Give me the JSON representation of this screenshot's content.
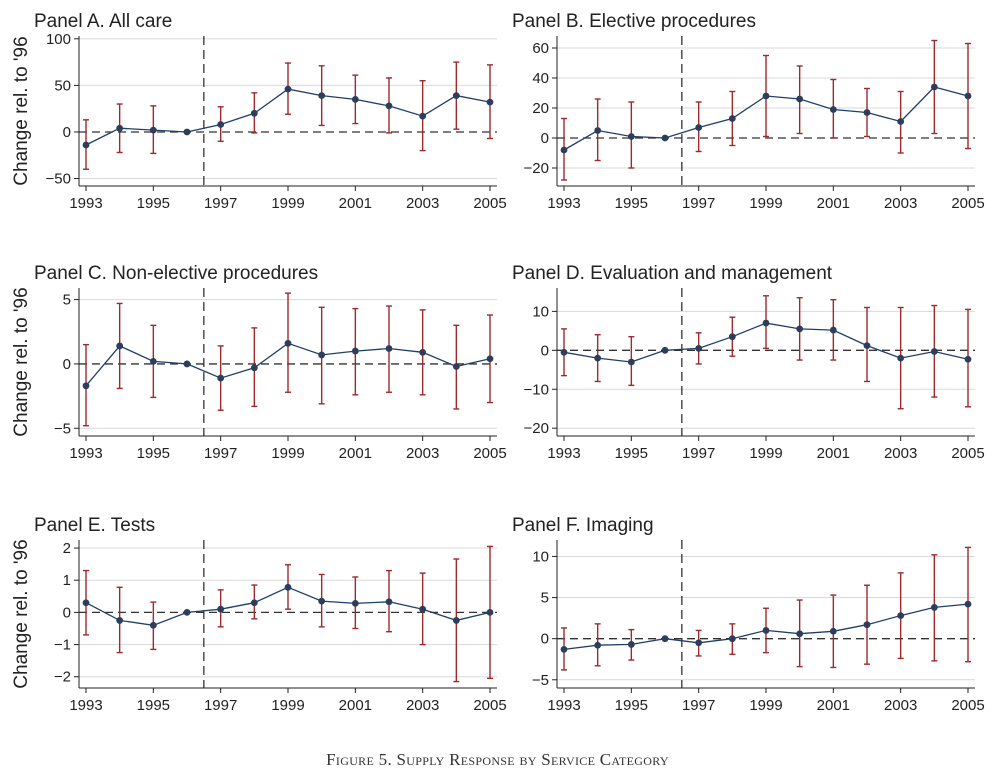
{
  "caption": "Figure 5. Supply Response by Service Category",
  "colors": {
    "line": "#1f3f66",
    "marker": "#2d3e5c",
    "ci": "#9e2a2b",
    "grid": "#d9d9d9",
    "axis": "#222222"
  },
  "chart_data": [
    {
      "type": "line",
      "title": "Panel A. All care",
      "ylabel": "Change rel. to '96",
      "x": [
        1993,
        1994,
        1995,
        1996,
        1997,
        1998,
        1999,
        2000,
        2001,
        2002,
        2003,
        2004,
        2005
      ],
      "y": [
        -14,
        4,
        2,
        0,
        8,
        20,
        46,
        39,
        35,
        28,
        17,
        39,
        32
      ],
      "ci_low": [
        -40,
        -22,
        -23,
        0,
        -10,
        -1,
        19,
        7,
        9,
        -1,
        -20,
        3,
        -7
      ],
      "ci_high": [
        13,
        30,
        28,
        0,
        27,
        42,
        74,
        71,
        61,
        58,
        55,
        75,
        72
      ],
      "yticks": [
        -50,
        0,
        50,
        100
      ],
      "ylim": [
        -58,
        103
      ],
      "xticks": [
        1993,
        1995,
        1997,
        1999,
        2001,
        2003,
        2005
      ],
      "xlim": [
        1993,
        2005
      ],
      "vline": 1996.5,
      "hline": 0,
      "grid": true
    },
    {
      "type": "line",
      "title": "Panel B. Elective procedures",
      "ylabel": "",
      "x": [
        1993,
        1994,
        1995,
        1996,
        1997,
        1998,
        1999,
        2000,
        2001,
        2002,
        2003,
        2004,
        2005
      ],
      "y": [
        -8,
        5,
        1,
        0,
        7,
        13,
        28,
        26,
        19,
        17,
        11,
        34,
        28
      ],
      "ci_low": [
        -28,
        -15,
        -20,
        0,
        -9,
        -5,
        1,
        3,
        0,
        1,
        -10,
        3,
        -7
      ],
      "ci_high": [
        13,
        26,
        24,
        0,
        24,
        31,
        55,
        48,
        39,
        33,
        31,
        65,
        63
      ],
      "yticks": [
        -20,
        0,
        20,
        40,
        60
      ],
      "ylim": [
        -32,
        68
      ],
      "xticks": [
        1993,
        1995,
        1997,
        1999,
        2001,
        2003,
        2005
      ],
      "xlim": [
        1993,
        2005
      ],
      "vline": 1996.5,
      "hline": 0,
      "grid": true
    },
    {
      "type": "line",
      "title": "Panel C. Non-elective procedures",
      "ylabel": "Change rel. to '96",
      "x": [
        1993,
        1994,
        1995,
        1996,
        1997,
        1998,
        1999,
        2000,
        2001,
        2002,
        2003,
        2004,
        2005
      ],
      "y": [
        -1.7,
        1.4,
        0.2,
        0,
        -1.1,
        -0.3,
        1.6,
        0.7,
        1.0,
        1.2,
        0.9,
        -0.2,
        0.4
      ],
      "ci_low": [
        -4.8,
        -1.9,
        -2.6,
        0,
        -3.6,
        -3.3,
        -2.2,
        -3.1,
        -2.4,
        -2.2,
        -2.4,
        -3.5,
        -3.0
      ],
      "ci_high": [
        1.5,
        4.7,
        3.0,
        0,
        1.4,
        2.8,
        5.5,
        4.4,
        4.3,
        4.5,
        4.2,
        3.0,
        3.8
      ],
      "yticks": [
        -5,
        0,
        5
      ],
      "ylim": [
        -5.6,
        5.9
      ],
      "xticks": [
        1993,
        1995,
        1997,
        1999,
        2001,
        2003,
        2005
      ],
      "xlim": [
        1993,
        2005
      ],
      "vline": 1996.5,
      "hline": 0,
      "grid": true
    },
    {
      "type": "line",
      "title": "Panel D. Evaluation and management",
      "ylabel": "",
      "x": [
        1993,
        1994,
        1995,
        1996,
        1997,
        1998,
        1999,
        2000,
        2001,
        2002,
        2003,
        2004,
        2005
      ],
      "y": [
        -0.5,
        -2,
        -3,
        0,
        0.5,
        3.5,
        7,
        5.5,
        5.2,
        1.2,
        -2,
        -0.3,
        -2.3
      ],
      "ci_low": [
        -6.5,
        -8,
        -9,
        0,
        -3.5,
        -1.5,
        0.5,
        -2.5,
        -2.5,
        -8,
        -15,
        -12,
        -14.5
      ],
      "ci_high": [
        5.5,
        4,
        3.5,
        0,
        4.5,
        8.5,
        14,
        13.5,
        13,
        11,
        11,
        11.5,
        10.5
      ],
      "yticks": [
        -20,
        -10,
        0,
        10
      ],
      "ylim": [
        -22,
        16
      ],
      "xticks": [
        1993,
        1995,
        1997,
        1999,
        2001,
        2003,
        2005
      ],
      "xlim": [
        1993,
        2005
      ],
      "vline": 1996.5,
      "hline": 0,
      "grid": true
    },
    {
      "type": "line",
      "title": "Panel E. Tests",
      "ylabel": "Change rel. to '96",
      "x": [
        1993,
        1994,
        1995,
        1996,
        1997,
        1998,
        1999,
        2000,
        2001,
        2002,
        2003,
        2004,
        2005
      ],
      "y": [
        0.3,
        -0.25,
        -0.4,
        0,
        0.1,
        0.3,
        0.78,
        0.35,
        0.28,
        0.33,
        0.1,
        -0.25,
        0.0
      ],
      "ci_low": [
        -0.7,
        -1.25,
        -1.15,
        0,
        -0.45,
        -0.2,
        0.1,
        -0.45,
        -0.5,
        -0.6,
        -1.0,
        -2.15,
        -2.05
      ],
      "ci_high": [
        1.3,
        0.78,
        0.32,
        0,
        0.7,
        0.85,
        1.48,
        1.18,
        1.1,
        1.3,
        1.22,
        1.66,
        2.05
      ],
      "yticks": [
        -2,
        -1,
        0,
        1,
        2
      ],
      "ylim": [
        -2.35,
        2.25
      ],
      "xticks": [
        1993,
        1995,
        1997,
        1999,
        2001,
        2003,
        2005
      ],
      "xlim": [
        1993,
        2005
      ],
      "vline": 1996.5,
      "hline": 0,
      "grid": true
    },
    {
      "type": "line",
      "title": "Panel F. Imaging",
      "ylabel": "",
      "x": [
        1993,
        1994,
        1995,
        1996,
        1997,
        1998,
        1999,
        2000,
        2001,
        2002,
        2003,
        2004,
        2005
      ],
      "y": [
        -1.3,
        -0.8,
        -0.7,
        0,
        -0.5,
        0,
        1.0,
        0.6,
        0.9,
        1.7,
        2.8,
        3.8,
        4.2
      ],
      "ci_low": [
        -3.8,
        -3.3,
        -2.6,
        0,
        -2.1,
        -1.9,
        -1.7,
        -3.4,
        -3.5,
        -3.1,
        -2.4,
        -2.7,
        -2.8
      ],
      "ci_high": [
        1.3,
        1.8,
        1.1,
        0,
        1.0,
        1.8,
        3.7,
        4.7,
        5.3,
        6.5,
        8.0,
        10.2,
        11.1
      ],
      "yticks": [
        -5,
        0,
        5,
        10
      ],
      "ylim": [
        -6,
        12
      ],
      "xticks": [
        1993,
        1995,
        1997,
        1999,
        2001,
        2003,
        2005
      ],
      "xlim": [
        1993,
        2005
      ],
      "vline": 1996.5,
      "hline": 0,
      "grid": true
    }
  ]
}
